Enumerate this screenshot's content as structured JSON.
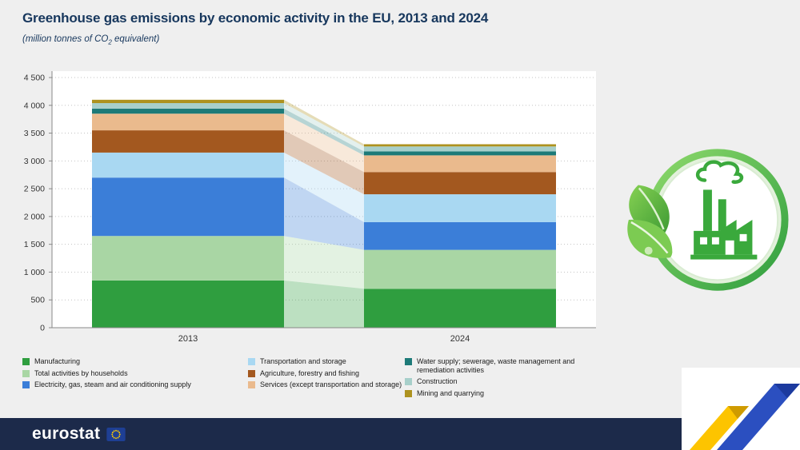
{
  "header": {
    "title": "Greenhouse gas emissions by economic activity in the EU, 2013 and 2024",
    "subtitle_prefix": "(million tonnes of CO",
    "subtitle_sub": "2",
    "subtitle_suffix": " equivalent)"
  },
  "chart_data": {
    "type": "bar",
    "subtype": "stacked-bars-with-transition-ribbons",
    "title": "Greenhouse gas emissions by economic activity in the EU, 2013 and 2024",
    "unit_label": "(million tonnes of CO2 equivalent)",
    "categories": [
      "2013",
      "2024"
    ],
    "ylim": [
      0,
      4500
    ],
    "ytick_step": 500,
    "ytick_labels": [
      "0",
      "500",
      "1 000",
      "1 500",
      "2 000",
      "2 500",
      "3 000",
      "3 500",
      "4 000",
      "4 500"
    ],
    "grid": "dotted-horizontal",
    "legend_position": "bottom",
    "legend_columns": 3,
    "series": [
      {
        "name": "Manufacturing",
        "color": "#2f9e3f",
        "values": [
          850,
          700
        ]
      },
      {
        "name": "Total activities by households",
        "color": "#a9d6a4",
        "values": [
          800,
          700
        ]
      },
      {
        "name": "Electricity, gas, steam and air conditioning supply",
        "color": "#3b7ed8",
        "values": [
          1050,
          500
        ]
      },
      {
        "name": "Transportation and storage",
        "color": "#a9d8f2",
        "values": [
          450,
          500
        ]
      },
      {
        "name": "Agriculture, forestry and fishing",
        "color": "#a3581f",
        "values": [
          400,
          400
        ]
      },
      {
        "name": "Services (except transportation and storage)",
        "color": "#eaba8d",
        "values": [
          300,
          300
        ]
      },
      {
        "name": "Water supply; sewerage, waste management and remediation activities",
        "color": "#1d7a78",
        "values": [
          90,
          70
        ]
      },
      {
        "name": "Construction",
        "color": "#a7cfca",
        "values": [
          100,
          90
        ]
      },
      {
        "name": "Mining and quarrying",
        "color": "#ad921f",
        "values": [
          60,
          40
        ]
      }
    ]
  },
  "footer": {
    "logo_text": "eurostat"
  },
  "decor": {
    "emblem_icon": "green-factory-leaves-icon",
    "corner_icon": "eurostat-blue-yellow-ribbon-icon",
    "flag_icon": "eu-flag-icon"
  },
  "colors": {
    "title": "#17375d",
    "footer_bg": "#1c2a4a",
    "page_bg": "#efefef",
    "ribbon_yellow": "#fdc400",
    "ribbon_blue": "#2b4fc0"
  }
}
